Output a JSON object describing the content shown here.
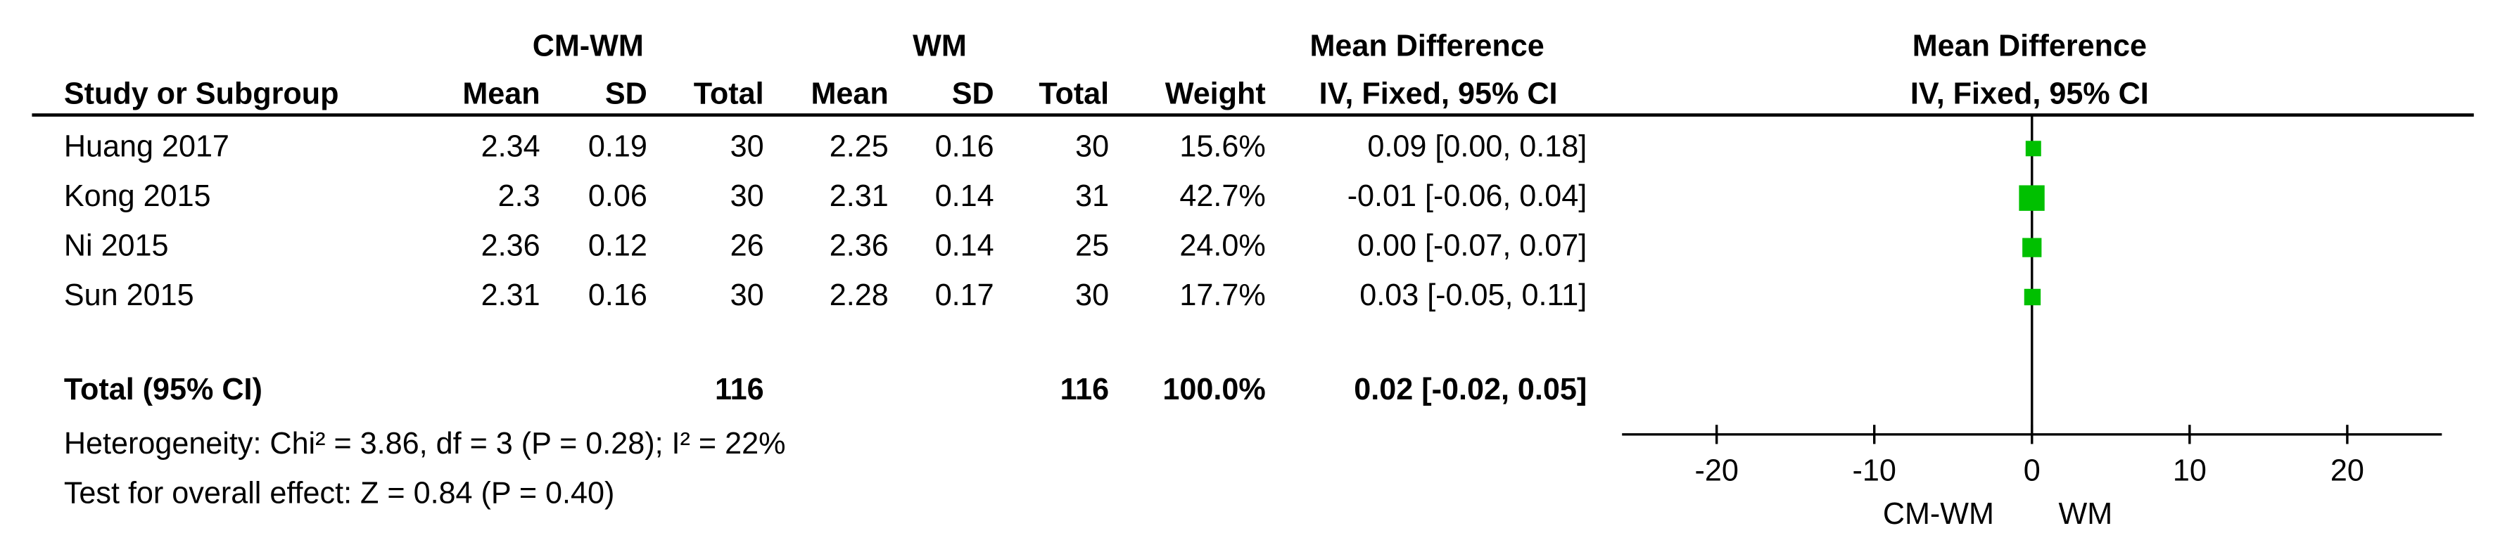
{
  "chart_data": {
    "type": "forest",
    "group_headers": [
      "CM-WM",
      "WM"
    ],
    "effect_header": "Mean Difference",
    "effect_subheader": "IV, Fixed, 95% CI",
    "plot_header": "Mean Difference",
    "plot_subheader": "IV, Fixed, 95% CI",
    "columns": [
      "Study or Subgroup",
      "Mean",
      "SD",
      "Total",
      "Mean",
      "SD",
      "Total",
      "Weight"
    ],
    "studies": [
      {
        "name": "Huang 2017",
        "cells": [
          "2.34",
          "0.19",
          "30",
          "2.25",
          "0.16",
          "30"
        ]
      },
      {
        "name": "Kong 2015",
        "cells": [
          "2.3",
          "0.06",
          "30",
          "2.31",
          "0.14",
          "31"
        ]
      },
      {
        "name": "Ni 2015",
        "cells": [
          "2.36",
          "0.12",
          "26",
          "2.36",
          "0.14",
          "25"
        ]
      },
      {
        "name": "Sun 2015",
        "cells": [
          "2.31",
          "0.16",
          "30",
          "2.28",
          "0.17",
          "30"
        ]
      }
    ],
    "weights": [
      15.6,
      42.7,
      24.0,
      17.7
    ],
    "weight_labels": [
      "15.6%",
      "42.7%",
      "24.0%",
      "17.7%"
    ],
    "values": [
      0.09,
      -0.01,
      0.0,
      0.03
    ],
    "ci_low": [
      0.0,
      -0.06,
      -0.07,
      -0.05
    ],
    "ci_high": [
      0.18,
      0.04,
      0.07,
      0.11
    ],
    "value_labels": [
      "0.09 [0.00, 0.18]",
      "-0.01 [-0.06, 0.04]",
      "0.00 [-0.07, 0.07]",
      "0.03 [-0.05, 0.11]"
    ],
    "total": {
      "name": "Total (95% CI)",
      "exp_total": "116",
      "ctrl_total": "116",
      "weight": "100.0%",
      "value": 0.02,
      "ci_low": -0.02,
      "ci_high": 0.05,
      "value_label": "0.02 [-0.02, 0.05]"
    },
    "heterogeneity": "Heterogeneity: Chi² = 3.86, df = 3 (P = 0.28); I² = 22%",
    "overall_effect": "Test for overall effect: Z = 0.84 (P = 0.40)",
    "favours": [
      "CM-WM",
      "WM"
    ],
    "color": "#00c000",
    "xlim": [
      -26,
      26
    ],
    "xticks": [
      -20,
      -10,
      0,
      10,
      20
    ]
  }
}
